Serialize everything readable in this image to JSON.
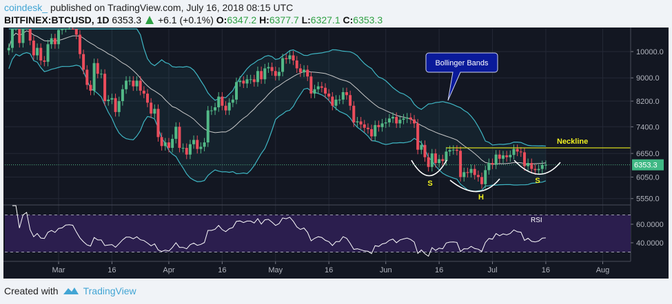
{
  "header": {
    "user": "coindesk_",
    "published": "published on TradingView.com, July 16, 2018 08:15 UTC",
    "symbol": "BITFINEX:BTCUSD, 1D",
    "last": "6353.3",
    "change": "+6.1 (+0.1%)",
    "o_label": "O:",
    "o": "6347.2",
    "h_label": "H:",
    "h": "6377.7",
    "l_label": "L:",
    "l": "6327.1",
    "c_label": "C:",
    "c": "6353.3"
  },
  "footer": {
    "created_with": "Created with",
    "brand": "TradingView"
  },
  "chart_data": {
    "type": "candlestick",
    "y_scale": "log",
    "ylim": [
      5300,
      11100
    ],
    "y_ticks": [
      "10000.0",
      "9000.0",
      "8200.0",
      "7400.0",
      "6650.0",
      "6050.0",
      "5550.0"
    ],
    "x_ticks": [
      "Mar",
      "16",
      "Apr",
      "16",
      "May",
      "16",
      "Jun",
      "16",
      "Jul",
      "16",
      "Aug"
    ],
    "last_price_label": "6353.3",
    "grid": true,
    "colors": {
      "up": "#53b987",
      "down": "#eb4d5c",
      "bands": "#3fb6c4",
      "basis": "#c9c9c9",
      "neckline": "#d8d81c",
      "rsi_fill": "#2b1e4e",
      "background": "#131722"
    },
    "indicators": {
      "bollinger_bands": {
        "period": 20,
        "std": 2
      },
      "rsi": {
        "period": 14,
        "label": "RSI",
        "ylim": [
          20,
          80
        ],
        "y_ticks": [
          "60.0000",
          "40.0000"
        ],
        "bands": [
          70,
          30
        ]
      }
    },
    "annotations": {
      "callout": "Bollinger Bands",
      "neckline_label": "Neckline",
      "neckline_price": 6800,
      "pattern_labels": [
        "S",
        "H",
        "S"
      ]
    },
    "close": [
      [
        "2018-02-15",
        10150
      ],
      [
        "2018-02-16",
        11050
      ],
      [
        "2018-02-17",
        11100
      ],
      [
        "2018-02-18",
        10350
      ],
      [
        "2018-02-19",
        11150
      ],
      [
        "2018-02-20",
        11400
      ],
      [
        "2018-02-21",
        10450
      ],
      [
        "2018-02-22",
        9850
      ],
      [
        "2018-02-23",
        10150
      ],
      [
        "2018-02-24",
        9650
      ],
      [
        "2018-02-25",
        9600
      ],
      [
        "2018-02-26",
        10300
      ],
      [
        "2018-02-27",
        10550
      ],
      [
        "2018-02-28",
        10300
      ],
      [
        "2018-03-01",
        10900
      ],
      [
        "2018-03-02",
        11000
      ],
      [
        "2018-03-03",
        11450
      ],
      [
        "2018-03-04",
        11500
      ],
      [
        "2018-03-05",
        11450
      ],
      [
        "2018-03-06",
        10700
      ],
      [
        "2018-03-07",
        9900
      ],
      [
        "2018-03-08",
        9300
      ],
      [
        "2018-03-09",
        8750
      ],
      [
        "2018-03-10",
        8550
      ],
      [
        "2018-03-11",
        9550
      ],
      [
        "2018-03-12",
        9150
      ],
      [
        "2018-03-13",
        9150
      ],
      [
        "2018-03-14",
        8200
      ],
      [
        "2018-03-15",
        8250
      ],
      [
        "2018-03-16",
        8300
      ],
      [
        "2018-03-17",
        7850
      ],
      [
        "2018-03-18",
        8200
      ],
      [
        "2018-03-19",
        8600
      ],
      [
        "2018-03-20",
        8900
      ],
      [
        "2018-03-21",
        8900
      ],
      [
        "2018-03-22",
        8700
      ],
      [
        "2018-03-23",
        8900
      ],
      [
        "2018-03-24",
        8550
      ],
      [
        "2018-03-25",
        8450
      ],
      [
        "2018-03-26",
        8150
      ],
      [
        "2018-03-27",
        7800
      ],
      [
        "2018-03-28",
        7950
      ],
      [
        "2018-03-29",
        7100
      ],
      [
        "2018-03-30",
        6850
      ],
      [
        "2018-03-31",
        6950
      ],
      [
        "2018-04-01",
        6800
      ],
      [
        "2018-04-02",
        7050
      ],
      [
        "2018-04-03",
        7400
      ],
      [
        "2018-04-04",
        6800
      ],
      [
        "2018-04-05",
        6800
      ],
      [
        "2018-04-06",
        6620
      ],
      [
        "2018-04-07",
        6900
      ],
      [
        "2018-04-08",
        7020
      ],
      [
        "2018-04-09",
        6770
      ],
      [
        "2018-04-10",
        6830
      ],
      [
        "2018-04-11",
        6950
      ],
      [
        "2018-04-12",
        7900
      ],
      [
        "2018-04-13",
        7900
      ],
      [
        "2018-04-14",
        8000
      ],
      [
        "2018-04-15",
        8350
      ],
      [
        "2018-04-16",
        8050
      ],
      [
        "2018-04-17",
        7900
      ],
      [
        "2018-04-18",
        8150
      ],
      [
        "2018-04-19",
        8250
      ],
      [
        "2018-04-20",
        8850
      ],
      [
        "2018-04-21",
        8900
      ],
      [
        "2018-04-22",
        8800
      ],
      [
        "2018-04-23",
        8950
      ],
      [
        "2018-04-24",
        8950
      ],
      [
        "2018-04-25",
        8850
      ],
      [
        "2018-04-26",
        9250
      ],
      [
        "2018-04-27",
        8950
      ],
      [
        "2018-04-28",
        9350
      ],
      [
        "2018-04-29",
        9400
      ],
      [
        "2018-04-30",
        9250
      ],
      [
        "2018-05-01",
        9070
      ],
      [
        "2018-05-02",
        9220
      ],
      [
        "2018-05-03",
        9740
      ],
      [
        "2018-05-04",
        9700
      ],
      [
        "2018-05-05",
        9850
      ],
      [
        "2018-05-06",
        9650
      ],
      [
        "2018-05-07",
        9350
      ],
      [
        "2018-05-08",
        9200
      ],
      [
        "2018-05-09",
        9300
      ],
      [
        "2018-05-10",
        9050
      ],
      [
        "2018-05-11",
        8450
      ],
      [
        "2018-05-12",
        8600
      ],
      [
        "2018-05-13",
        8700
      ],
      [
        "2018-05-14",
        8650
      ],
      [
        "2018-05-15",
        8450
      ],
      [
        "2018-05-16",
        8350
      ],
      [
        "2018-05-17",
        8050
      ],
      [
        "2018-05-18",
        8250
      ],
      [
        "2018-05-19",
        8250
      ],
      [
        "2018-05-20",
        8500
      ],
      [
        "2018-05-21",
        8400
      ],
      [
        "2018-05-22",
        8050
      ],
      [
        "2018-05-23",
        7530
      ],
      [
        "2018-05-24",
        7560
      ],
      [
        "2018-05-25",
        7470
      ],
      [
        "2018-05-26",
        7370
      ],
      [
        "2018-05-27",
        7330
      ],
      [
        "2018-05-28",
        7120
      ],
      [
        "2018-05-29",
        7450
      ],
      [
        "2018-05-30",
        7390
      ],
      [
        "2018-05-31",
        7500
      ],
      [
        "2018-06-01",
        7530
      ],
      [
        "2018-06-02",
        7650
      ],
      [
        "2018-06-03",
        7700
      ],
      [
        "2018-06-04",
        7500
      ],
      [
        "2018-06-05",
        7610
      ],
      [
        "2018-06-06",
        7650
      ],
      [
        "2018-06-07",
        7680
      ],
      [
        "2018-06-08",
        7620
      ],
      [
        "2018-06-09",
        7500
      ],
      [
        "2018-06-10",
        6750
      ],
      [
        "2018-06-11",
        6880
      ],
      [
        "2018-06-12",
        6550
      ],
      [
        "2018-06-13",
        6300
      ],
      [
        "2018-06-14",
        6650
      ],
      [
        "2018-06-15",
        6400
      ],
      [
        "2018-06-16",
        6500
      ],
      [
        "2018-06-17",
        6450
      ],
      [
        "2018-06-18",
        6700
      ],
      [
        "2018-06-19",
        6740
      ],
      [
        "2018-06-20",
        6750
      ],
      [
        "2018-06-21",
        6720
      ],
      [
        "2018-06-22",
        6050
      ],
      [
        "2018-06-23",
        6170
      ],
      [
        "2018-06-24",
        6150
      ],
      [
        "2018-06-25",
        6250
      ],
      [
        "2018-06-26",
        6100
      ],
      [
        "2018-06-27",
        6050
      ],
      [
        "2018-06-28",
        5880
      ],
      [
        "2018-06-29",
        6220
      ],
      [
        "2018-06-30",
        6400
      ],
      [
        "2018-07-01",
        6360
      ],
      [
        "2018-07-02",
        6620
      ],
      [
        "2018-07-03",
        6510
      ],
      [
        "2018-07-04",
        6600
      ],
      [
        "2018-07-05",
        6550
      ],
      [
        "2018-07-06",
        6610
      ],
      [
        "2018-07-07",
        6770
      ],
      [
        "2018-07-08",
        6700
      ],
      [
        "2018-07-09",
        6680
      ],
      [
        "2018-07-10",
        6320
      ],
      [
        "2018-07-11",
        6400
      ],
      [
        "2018-07-12",
        6250
      ],
      [
        "2018-07-13",
        6220
      ],
      [
        "2018-07-14",
        6250
      ],
      [
        "2018-07-15",
        6347.2
      ],
      [
        "2018-07-16",
        6353.3
      ]
    ]
  }
}
